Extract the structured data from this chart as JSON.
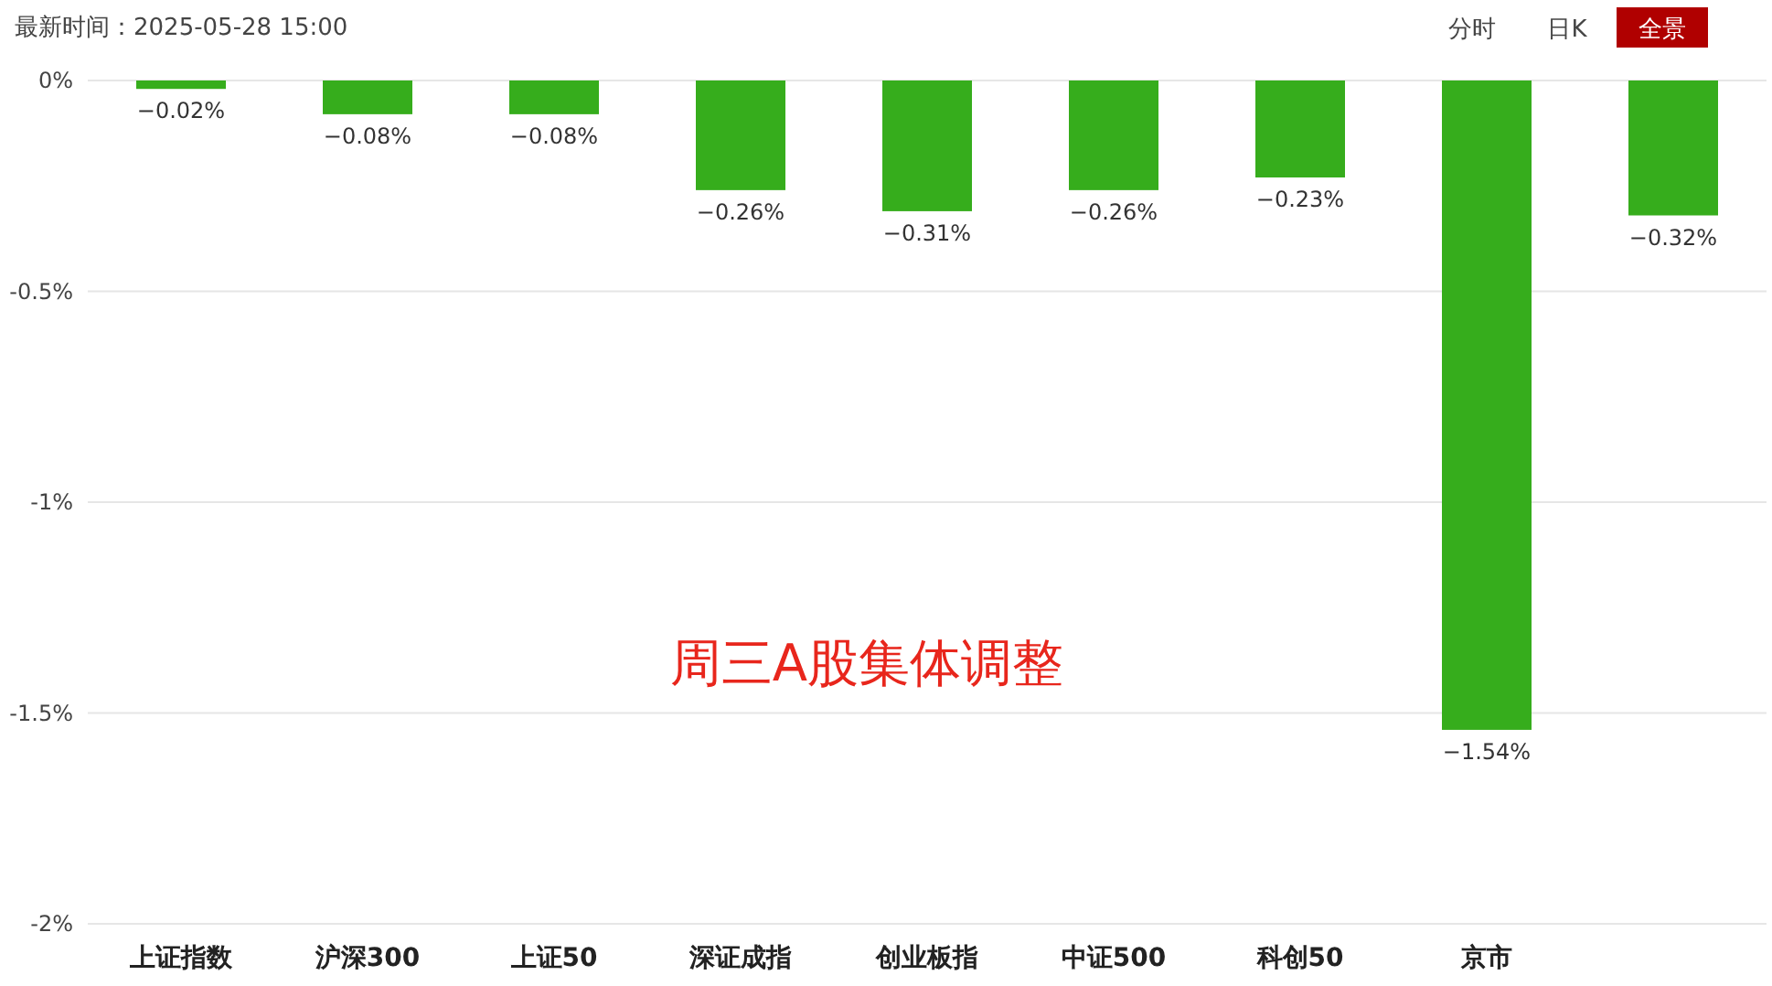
{
  "chart_data": {
    "type": "bar",
    "title": "最新时间：2025-05-28 15:00",
    "categories": [
      "上证指数",
      "沪深300",
      "上证50",
      "深证成指",
      "创业板指",
      "中证500",
      "科创50",
      "京市",
      null
    ],
    "values": [
      -0.02,
      -0.08,
      -0.08,
      -0.26,
      -0.31,
      -0.26,
      -0.23,
      -1.54,
      -0.32
    ],
    "value_labels": [
      "−0.02%",
      "−0.08%",
      "−0.08%",
      "−0.26%",
      "−0.31%",
      "−0.26%",
      "−0.23%",
      "−1.54%",
      "−0.32%"
    ],
    "color": "#36ad1c",
    "ylim": [
      -2,
      0
    ],
    "yticks": [
      {
        "value": 0,
        "label": "0%"
      },
      {
        "value": -0.5,
        "label": "-0.5%"
      },
      {
        "value": -1,
        "label": "-1%"
      },
      {
        "value": -1.5,
        "label": "-1.5%"
      },
      {
        "value": -2,
        "label": "-2%"
      }
    ],
    "grid": "y",
    "annotations": [
      "周三A股集体调整",
      "分时",
      "日K",
      "全景"
    ]
  }
}
